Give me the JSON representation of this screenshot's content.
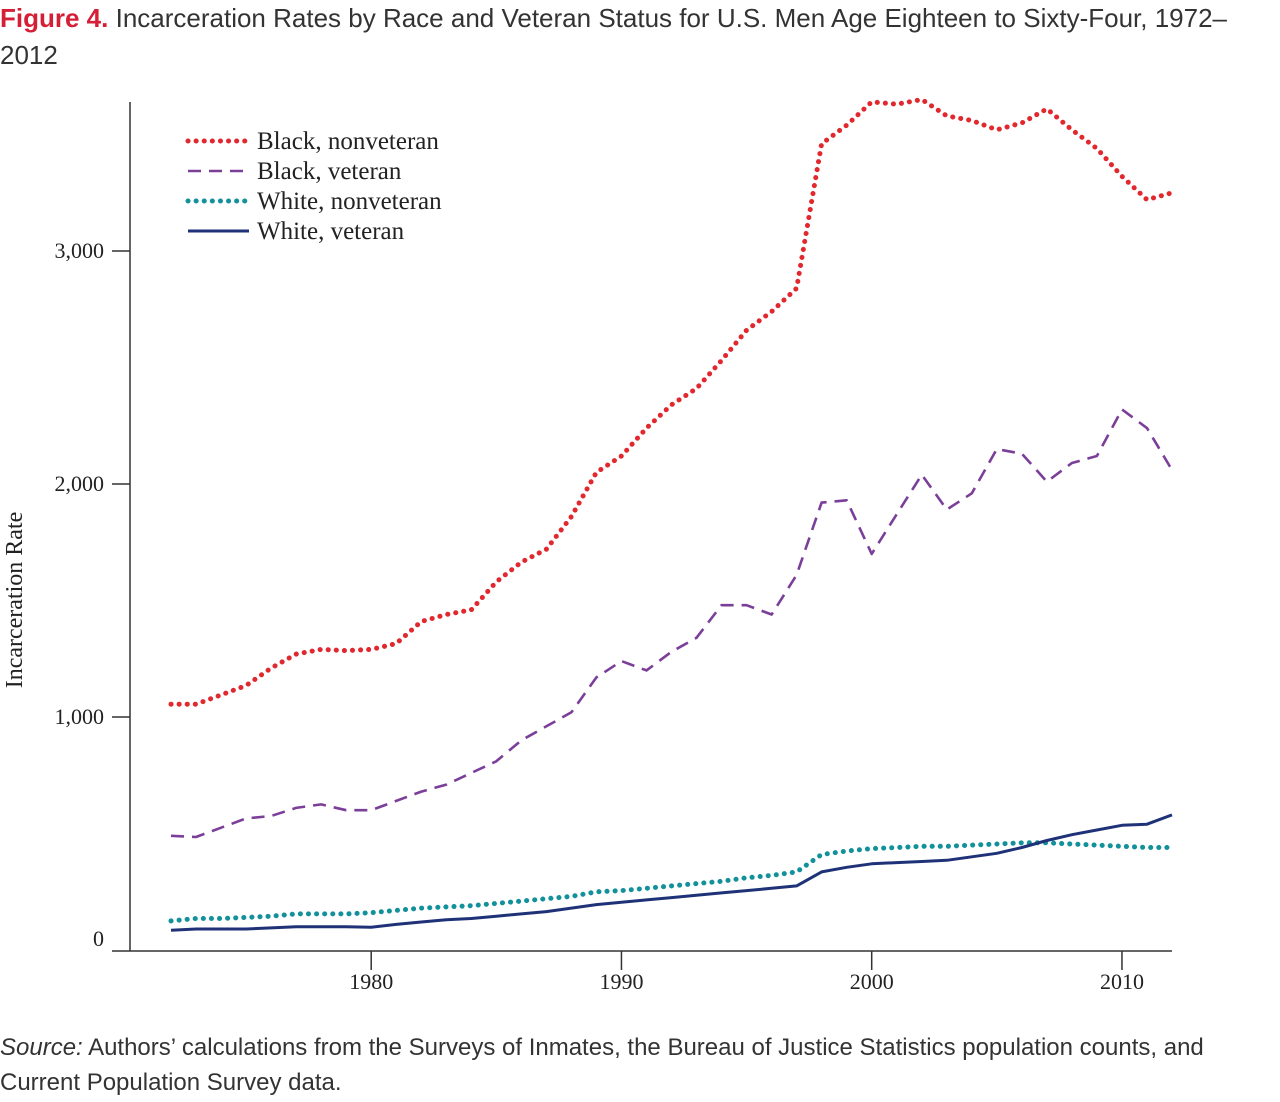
{
  "figure": {
    "label": "Figure 4.",
    "title": "Incarceration Rates by Race and Veteran Status for U.S. Men Age Eighteen to Sixty-Four, 1972–2012"
  },
  "source": {
    "label": "Source:",
    "text": "Authors’ calculations from the Surveys of Inmates, the Bureau of Justice Statistics population counts, and Current Population Survey data."
  },
  "colors": {
    "title_accent": "#d51f36",
    "axis": "#333333"
  },
  "chart_data": {
    "type": "line",
    "title": "Incarceration Rates by Race and Veteran Status for U.S. Men Age Eighteen to Sixty-Four, 1972–2012",
    "xlabel": "",
    "ylabel": "Incarceration Rate",
    "xlim": [
      1972,
      2012
    ],
    "ylim": [
      0,
      3650
    ],
    "x_ticks": [
      1980,
      1990,
      2000,
      2010
    ],
    "y_ticks": [
      0,
      1000,
      2000,
      3000
    ],
    "y_tick_labels": [
      "0",
      "1,000",
      "2,000",
      "3,000"
    ],
    "grid": false,
    "legend_position": "top-left",
    "x": [
      1972,
      1973,
      1974,
      1975,
      1976,
      1977,
      1978,
      1979,
      1980,
      1981,
      1982,
      1983,
      1984,
      1985,
      1986,
      1987,
      1988,
      1989,
      1990,
      1991,
      1992,
      1993,
      1994,
      1995,
      1996,
      1997,
      1998,
      1999,
      2000,
      2001,
      2002,
      2003,
      2004,
      2005,
      2006,
      2007,
      2008,
      2009,
      2010,
      2011,
      2012
    ],
    "series": [
      {
        "name": "Black, nonveteran",
        "color": "#e0282e",
        "style": "dotted-thick",
        "values": [
          1055,
          1055,
          1095,
          1135,
          1210,
          1270,
          1290,
          1285,
          1290,
          1315,
          1410,
          1440,
          1460,
          1580,
          1665,
          1720,
          1860,
          2050,
          2120,
          2240,
          2340,
          2410,
          2530,
          2660,
          2740,
          2840,
          3460,
          3540,
          3640,
          3630,
          3650,
          3580,
          3560,
          3520,
          3550,
          3610,
          3520,
          3440,
          3320,
          3220,
          3250
        ]
      },
      {
        "name": "Black, veteran",
        "color": "#7b3f99",
        "style": "dashed",
        "values": [
          490,
          485,
          525,
          565,
          575,
          610,
          625,
          600,
          600,
          640,
          680,
          710,
          760,
          810,
          900,
          960,
          1020,
          1170,
          1240,
          1200,
          1280,
          1340,
          1480,
          1480,
          1440,
          1610,
          1920,
          1930,
          1700,
          1870,
          2040,
          1890,
          1960,
          2150,
          2130,
          2010,
          2090,
          2120,
          2320,
          2240,
          2060
        ]
      },
      {
        "name": "White, nonveteran",
        "color": "#13919b",
        "style": "dotted-thick",
        "values": [
          125,
          135,
          135,
          140,
          145,
          155,
          155,
          155,
          160,
          170,
          180,
          185,
          190,
          200,
          210,
          220,
          230,
          250,
          255,
          265,
          275,
          285,
          295,
          310,
          320,
          335,
          410,
          425,
          435,
          440,
          445,
          445,
          450,
          455,
          460,
          460,
          455,
          450,
          445,
          440,
          440
        ]
      },
      {
        "name": "White, veteran",
        "color": "#1f3277",
        "style": "solid",
        "values": [
          85,
          90,
          90,
          90,
          95,
          100,
          100,
          100,
          98,
          110,
          120,
          130,
          135,
          145,
          155,
          165,
          180,
          195,
          205,
          215,
          225,
          235,
          245,
          255,
          265,
          275,
          335,
          355,
          370,
          375,
          380,
          385,
          400,
          415,
          440,
          470,
          495,
          515,
          535,
          540,
          580
        ]
      }
    ]
  }
}
